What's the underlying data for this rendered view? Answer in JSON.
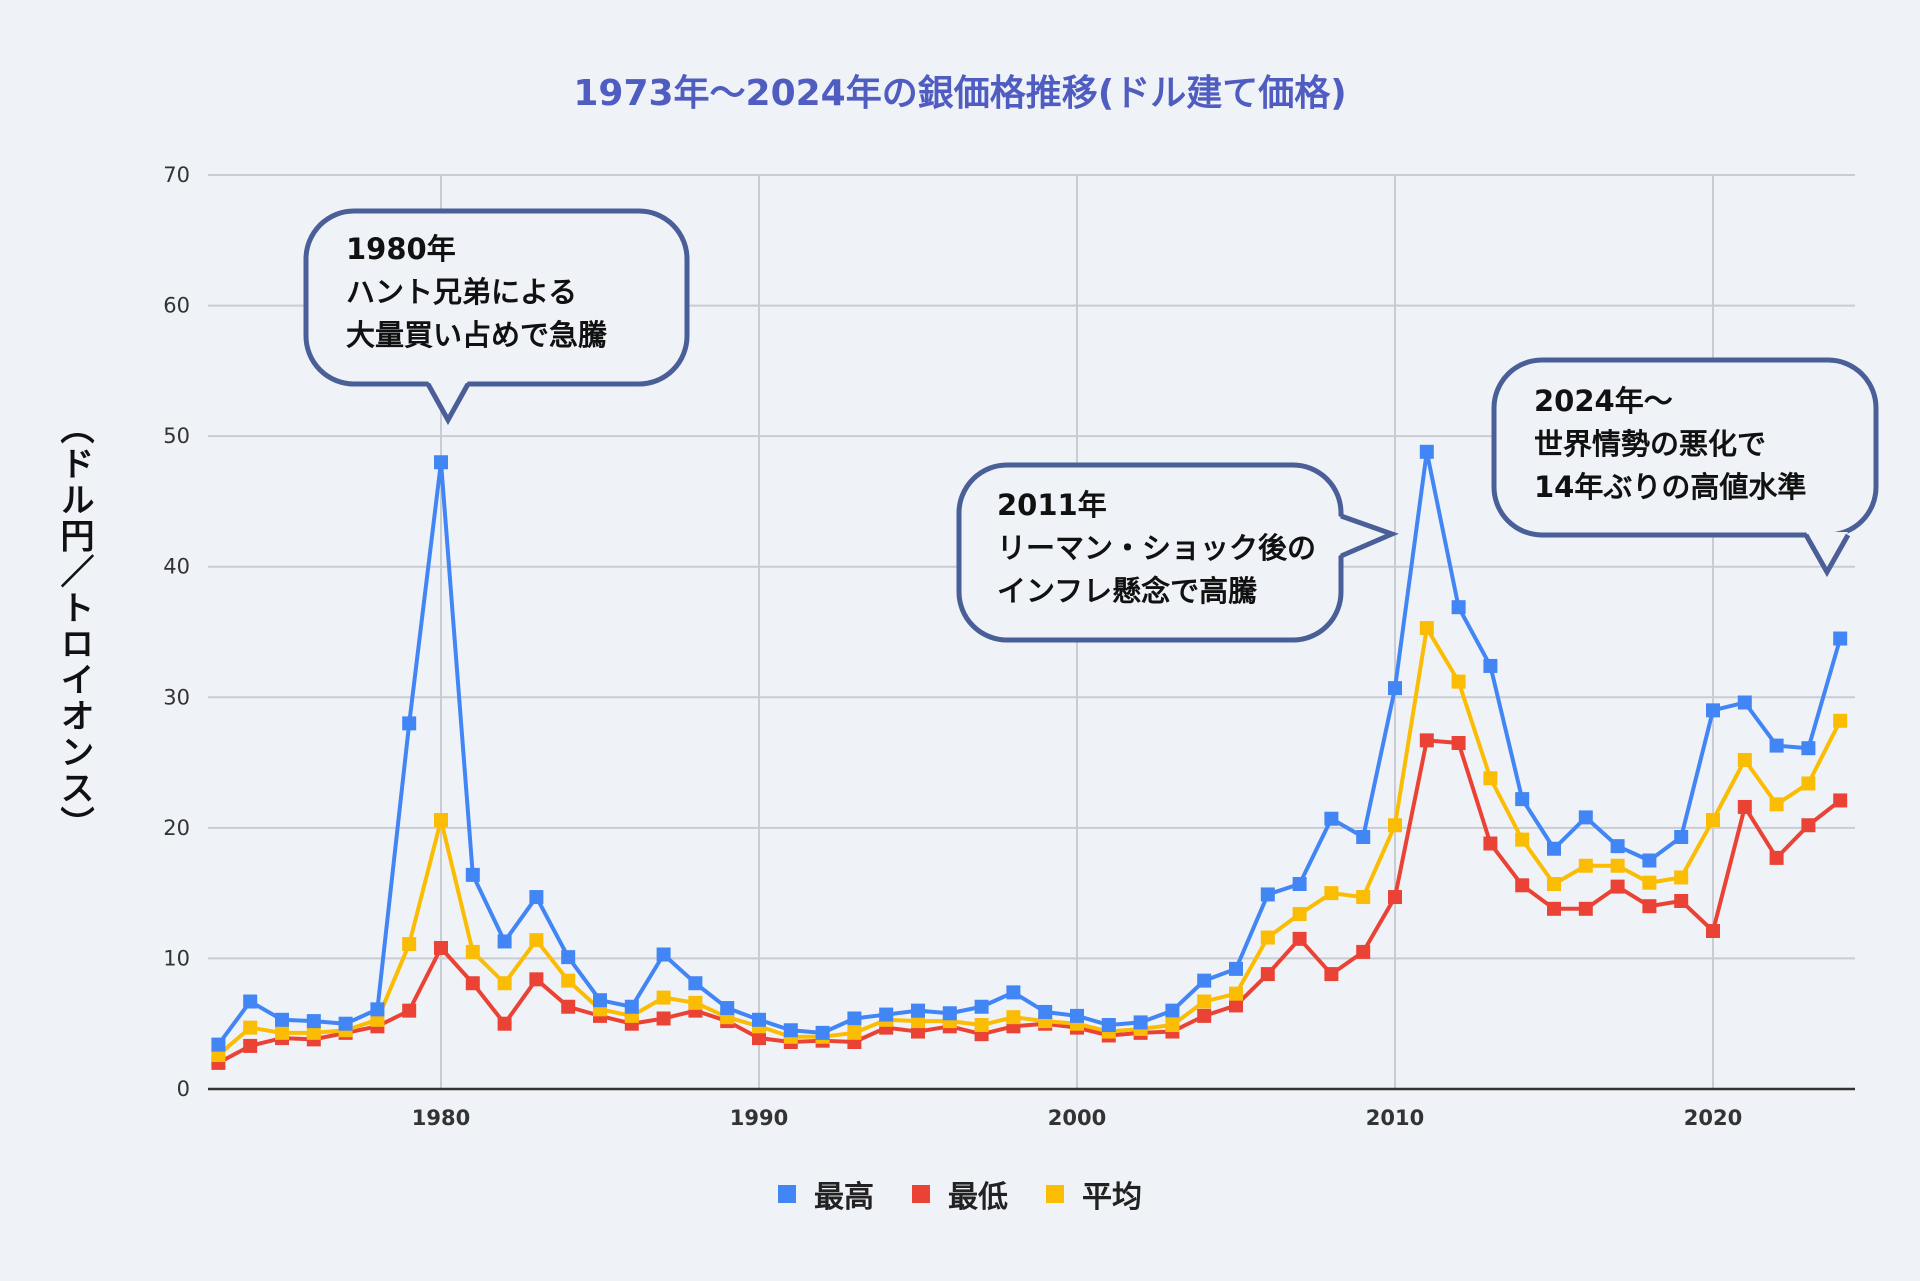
{
  "chart_data": {
    "type": "line",
    "title": "1973年～2024年の銀価格推移(ドル建て価格)",
    "ylabel": "（ドル円／トロイオンス）",
    "xlabel": "",
    "xlim": [
      1973,
      2024
    ],
    "ylim": [
      0,
      70
    ],
    "yticks": [
      "0",
      "10",
      "20",
      "30",
      "40",
      "50",
      "60",
      "70"
    ],
    "xticks": [
      "1980",
      "1990",
      "2000",
      "2010",
      "2020"
    ],
    "grid": true,
    "legend_position": "bottom",
    "x": [
      1973,
      1974,
      1975,
      1976,
      1977,
      1978,
      1979,
      1980,
      1981,
      1982,
      1983,
      1984,
      1985,
      1986,
      1987,
      1988,
      1989,
      1990,
      1991,
      1992,
      1993,
      1994,
      1995,
      1996,
      1997,
      1998,
      1999,
      2000,
      2001,
      2002,
      2003,
      2004,
      2005,
      2006,
      2007,
      2008,
      2009,
      2010,
      2011,
      2012,
      2013,
      2014,
      2015,
      2016,
      2017,
      2018,
      2019,
      2020,
      2021,
      2022,
      2023,
      2024
    ],
    "series": [
      {
        "name": "最高",
        "color": "#4285f4",
        "values": [
          3.4,
          6.7,
          5.3,
          5.2,
          5.0,
          6.1,
          28.0,
          48.0,
          16.4,
          11.3,
          14.7,
          10.1,
          6.8,
          6.3,
          10.3,
          8.1,
          6.2,
          5.3,
          4.5,
          4.3,
          5.4,
          5.7,
          6.0,
          5.8,
          6.3,
          7.4,
          5.9,
          5.6,
          4.9,
          5.1,
          6.0,
          8.3,
          9.2,
          14.9,
          15.7,
          20.7,
          19.3,
          30.7,
          48.8,
          36.9,
          32.4,
          22.2,
          18.4,
          20.8,
          18.6,
          17.5,
          19.3,
          29.0,
          29.6,
          26.3,
          26.1,
          34.5
        ]
      },
      {
        "name": "最低",
        "color": "#ea4335",
        "values": [
          2.0,
          3.3,
          3.9,
          3.8,
          4.3,
          4.8,
          6.0,
          10.8,
          8.1,
          5.0,
          8.4,
          6.3,
          5.6,
          5.0,
          5.4,
          6.0,
          5.2,
          3.9,
          3.6,
          3.7,
          3.6,
          4.7,
          4.4,
          4.8,
          4.2,
          4.8,
          5.0,
          4.7,
          4.1,
          4.3,
          4.4,
          5.6,
          6.4,
          8.8,
          11.5,
          8.8,
          10.5,
          14.7,
          26.7,
          26.5,
          18.8,
          15.6,
          13.8,
          13.8,
          15.5,
          14.0,
          14.4,
          12.1,
          21.6,
          17.7,
          20.2,
          22.1
        ]
      },
      {
        "name": "平均",
        "color": "#fbbc04",
        "values": [
          2.6,
          4.7,
          4.3,
          4.3,
          4.5,
          5.3,
          11.1,
          20.6,
          10.5,
          8.1,
          11.4,
          8.3,
          6.1,
          5.6,
          7.0,
          6.6,
          5.5,
          4.8,
          4.0,
          4.0,
          4.3,
          5.3,
          5.2,
          5.2,
          4.9,
          5.5,
          5.2,
          5.0,
          4.4,
          4.6,
          4.9,
          6.7,
          7.3,
          11.6,
          13.4,
          15.0,
          14.7,
          20.2,
          35.3,
          31.2,
          23.8,
          19.1,
          15.7,
          17.1,
          17.1,
          15.8,
          16.2,
          20.6,
          25.2,
          21.8,
          23.4,
          28.2
        ]
      }
    ],
    "annotations": [
      {
        "lines": [
          "1980年",
          "ハント兄弟による",
          "大量買い占めで急騰"
        ],
        "year": 1980
      },
      {
        "lines": [
          "2011年",
          "リーマン・ショック後の",
          "インフレ懸念で高騰"
        ],
        "year": 2011
      },
      {
        "lines": [
          "2024年～",
          "世界情勢の悪化で",
          "14年ぶりの高値水準"
        ],
        "year": 2024
      }
    ]
  },
  "colors": {
    "background": "#eff3f8",
    "title": "#4f5cc0",
    "callout_border": "#4a5e97",
    "grid": "#c9ccd2"
  }
}
